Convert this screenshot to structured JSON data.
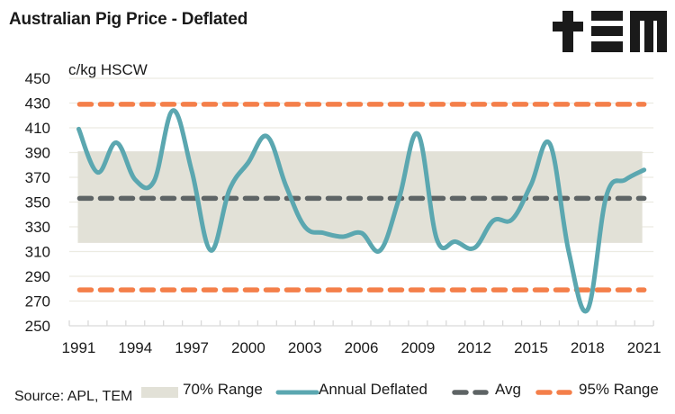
{
  "header": {
    "title": "Australian Pig Price - Deflated",
    "logo": "TEM logo (+EM)"
  },
  "footer": {
    "source": "Source: APL, TEM"
  },
  "colors": {
    "band": "#e2e1d7",
    "line": "#5ba7b0",
    "avg": "#5e6465",
    "range95": "#f47f4a",
    "grid": "#ecebe2"
  },
  "chart_data": {
    "type": "line",
    "title": "Australian Pig Price - Deflated",
    "ylabel": "c/kg HSCW",
    "xlabel": "",
    "ylim": [
      250,
      450
    ],
    "yticks": [
      250,
      270,
      290,
      310,
      330,
      350,
      370,
      390,
      410,
      430,
      450
    ],
    "xtick_labels": [
      "1991",
      "1994",
      "1997",
      "2000",
      "2003",
      "2006",
      "2009",
      "2012",
      "2015",
      "2018",
      "2021"
    ],
    "grid": true,
    "legend_position": "bottom",
    "x": [
      1991,
      1992,
      1993,
      1994,
      1995,
      1996,
      1997,
      1998,
      1999,
      2000,
      2001,
      2002,
      2003,
      2004,
      2005,
      2006,
      2007,
      2008,
      2009,
      2010,
      2011,
      2012,
      2013,
      2014,
      2015,
      2016,
      2017,
      2018,
      2019,
      2020,
      2021
    ],
    "series": [
      {
        "name": "Annual Deflated",
        "kind": "line",
        "values": [
          409,
          374,
          398,
          368,
          367,
          424,
          375,
          311,
          360,
          382,
          403,
          363,
          330,
          325,
          322,
          325,
          311,
          353,
          405,
          320,
          318,
          313,
          335,
          336,
          364,
          397,
          310,
          263,
          355,
          368,
          376
        ]
      },
      {
        "name": "Avg",
        "kind": "dashed-line",
        "value": 353
      },
      {
        "name": "95% Range",
        "kind": "dashed-band-lines",
        "upper": 429,
        "lower": 279
      },
      {
        "name": "70% Range",
        "kind": "band",
        "upper": 391,
        "lower": 317
      }
    ],
    "legend": [
      "70% Range",
      "Annual Deflated",
      "Avg",
      "95% Range"
    ]
  }
}
